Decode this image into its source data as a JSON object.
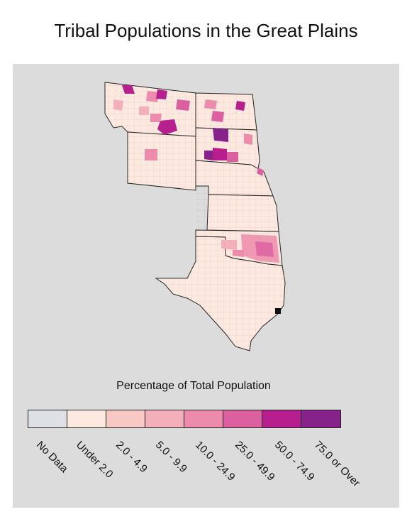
{
  "title": "Tribal Populations in the Great Plains",
  "legend": {
    "title": "Percentage of Total Population",
    "classes": [
      {
        "label": "No Data",
        "color": "#dde1e5"
      },
      {
        "label": "Under 2.0",
        "color": "#fde9df"
      },
      {
        "label": "2.0 - 4.9",
        "color": "#f8c9c4"
      },
      {
        "label": "5.0 - 9.9",
        "color": "#f3b0ba"
      },
      {
        "label": "10.0 - 24.9",
        "color": "#ec8bac"
      },
      {
        "label": "25.0 - 49.9",
        "color": "#dc5fa0"
      },
      {
        "label": "50.0 - 74.9",
        "color": "#b71f8f"
      },
      {
        "label": "75.0 or Over",
        "color": "#86228a"
      }
    ]
  },
  "map": {
    "background_color": "#dcdcdc",
    "county_fill": "#fde9df",
    "boundary_color": "#222222",
    "states": [
      "Montana",
      "North Dakota",
      "South Dakota",
      "Wyoming",
      "Nebraska",
      "Kansas",
      "Oklahoma",
      "Texas"
    ]
  }
}
